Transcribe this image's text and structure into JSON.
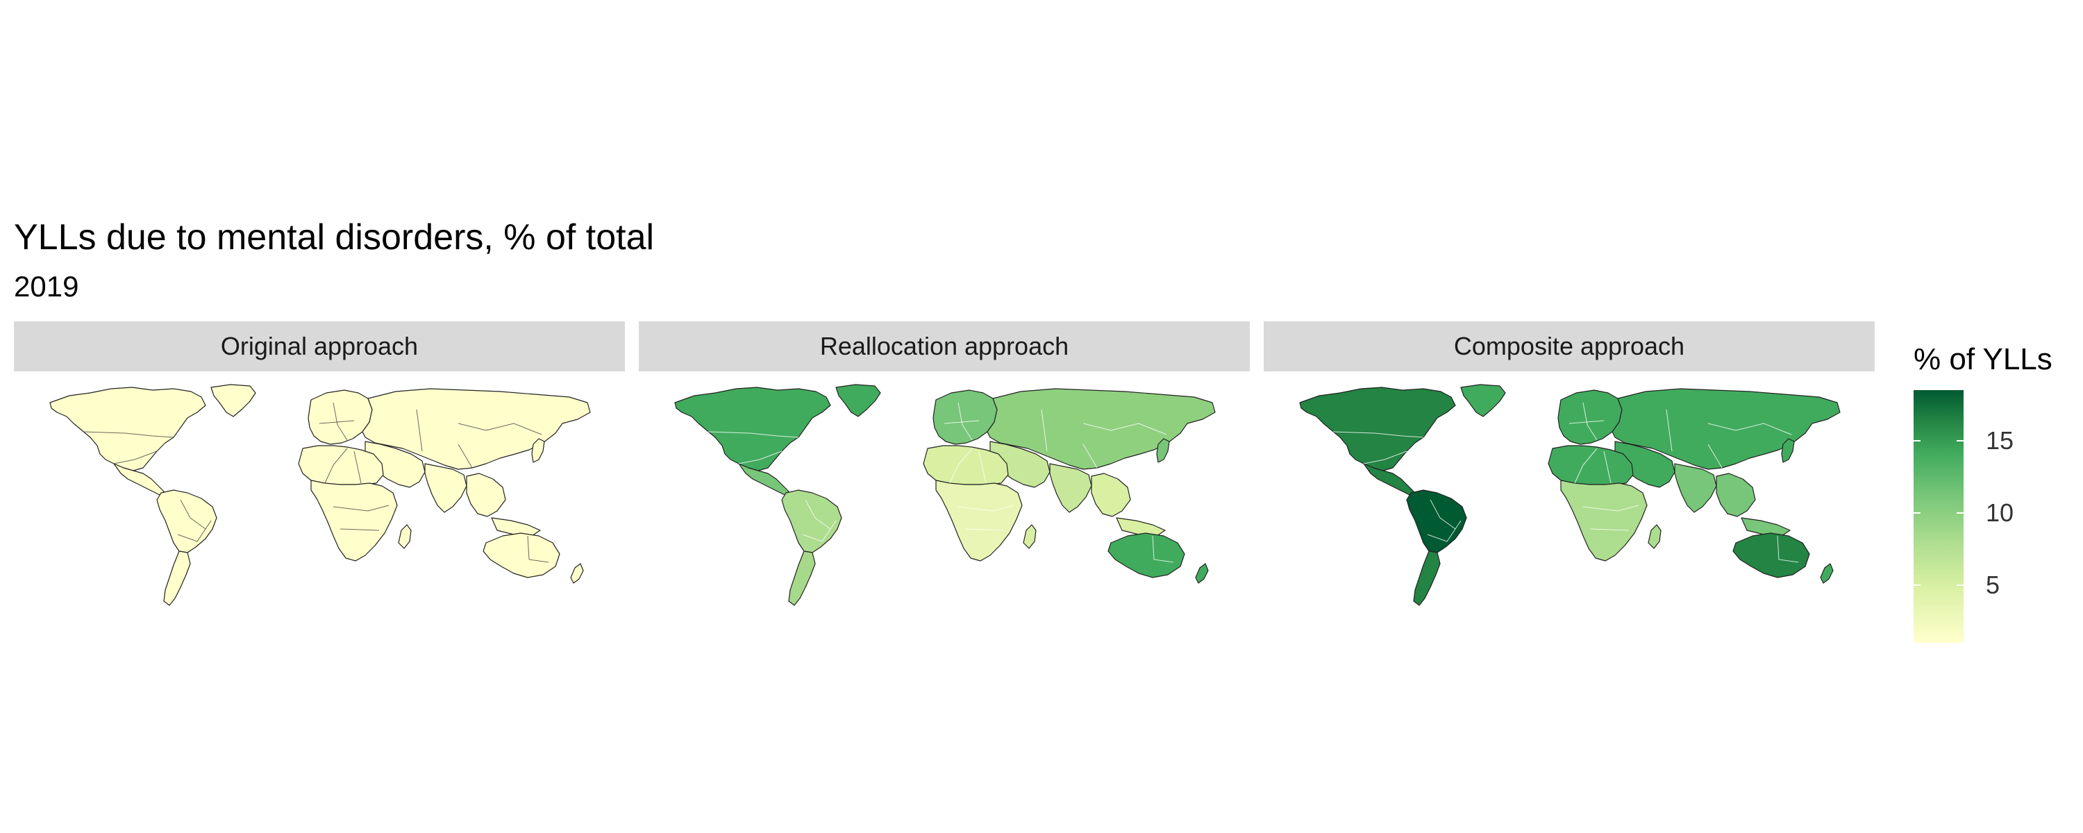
{
  "title": "YLLs due to mental disorders, % of total",
  "subtitle": "2019",
  "legend": {
    "title": "% of YLLs",
    "ticks": [
      "15",
      "10",
      "5"
    ],
    "tick_values": [
      15,
      10,
      5
    ],
    "range": [
      1,
      18.5
    ],
    "colors": [
      "#ffffcc",
      "#d9f0a3",
      "#addd8e",
      "#78c679",
      "#41ab5d",
      "#238443",
      "#005a32"
    ]
  },
  "panels": [
    {
      "label": "Original approach",
      "regions": {
        "north_america": "#ffffcc",
        "greenland": "#ffffcc",
        "central_america": "#ffffcc",
        "south_america": "#ffffcc",
        "south_america_south": "#ffffcc",
        "europe": "#ffffcc",
        "north_africa": "#ffffcc",
        "subsaharan_africa": "#ffffcc",
        "middle_east": "#ffffcc",
        "russia_asia": "#ffffcc",
        "south_asia": "#ffffcc",
        "southeast_asia": "#ffffcc",
        "japan": "#ffffcc",
        "australia": "#ffffcc",
        "new_zealand": "#ffffcc",
        "madagascar": "#ffffcc"
      }
    },
    {
      "label": "Reallocation approach",
      "regions": {
        "north_america": "#41ab5d",
        "greenland": "#41ab5d",
        "central_america": "#78c679",
        "south_america": "#addd8e",
        "south_america_south": "#a6d98a",
        "europe": "#78c679",
        "north_africa": "#d9f0a3",
        "subsaharan_africa": "#e8f5b4",
        "middle_east": "#c7e89b",
        "russia_asia": "#8fd07f",
        "south_asia": "#c7e89b",
        "southeast_asia": "#d9f0a3",
        "japan": "#78c679",
        "australia": "#41ab5d",
        "new_zealand": "#41ab5d",
        "madagascar": "#d9f0a3"
      }
    },
    {
      "label": "Composite approach",
      "regions": {
        "north_america": "#238443",
        "greenland": "#41ab5d",
        "central_america": "#238443",
        "south_america": "#005a32",
        "south_america_south": "#238443",
        "europe": "#41ab5d",
        "north_africa": "#41ab5d",
        "subsaharan_africa": "#addd8e",
        "middle_east": "#41ab5d",
        "russia_asia": "#41ab5d",
        "south_asia": "#78c679",
        "southeast_asia": "#78c679",
        "japan": "#41ab5d",
        "australia": "#238443",
        "new_zealand": "#41ab5d",
        "madagascar": "#addd8e"
      }
    }
  ]
}
